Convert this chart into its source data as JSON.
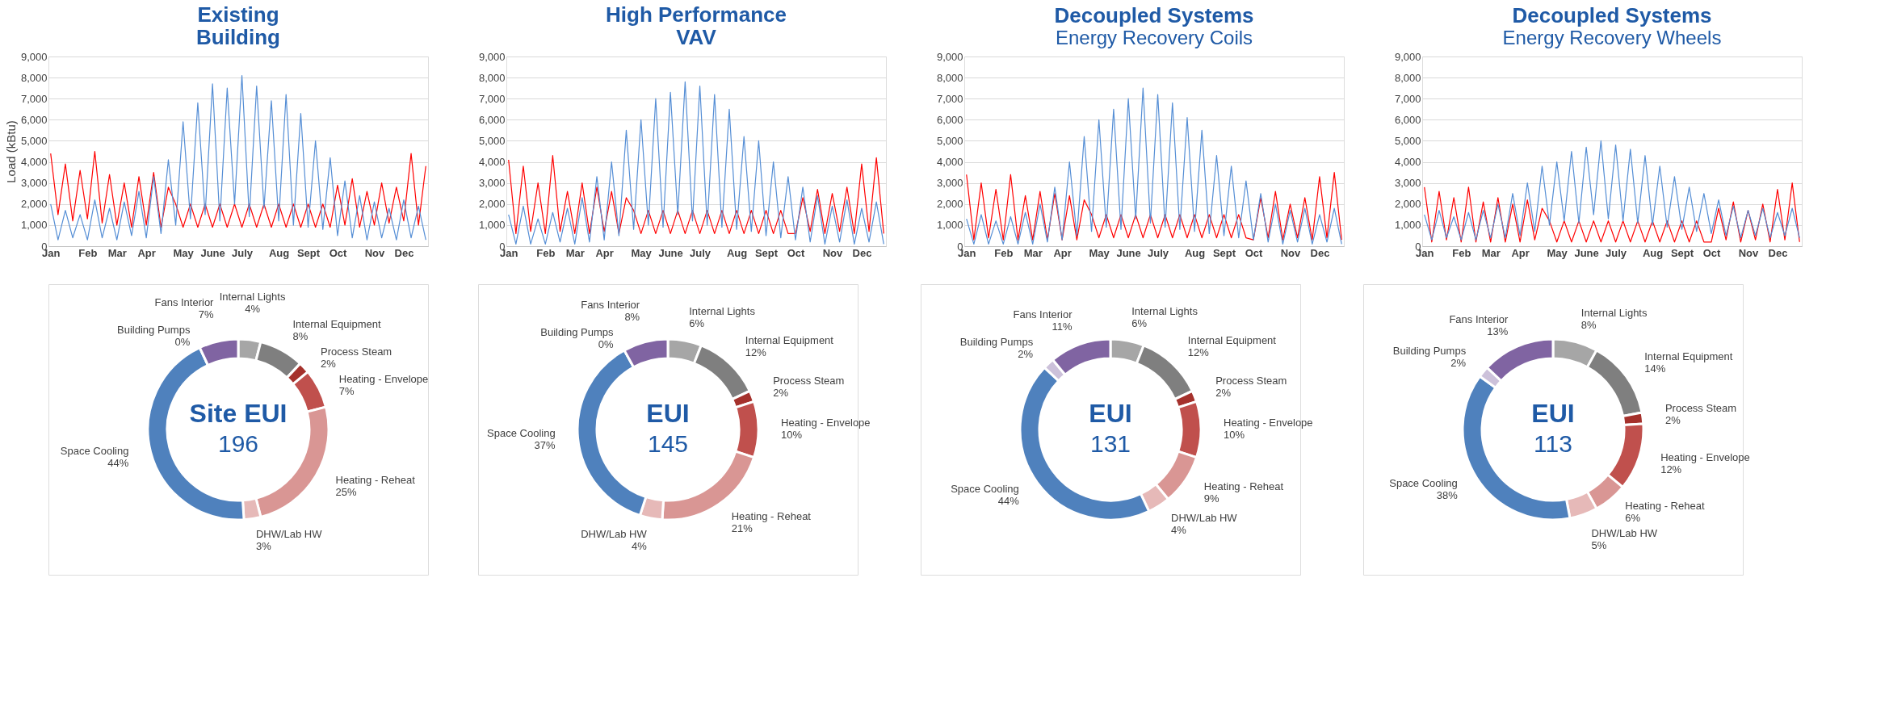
{
  "chart_data": [
    {
      "type": "line",
      "title": "Existing\nBuilding",
      "ylabel": "Load (kBtu)",
      "grid": "y",
      "marker": "none",
      "line_style": "solid",
      "categories": [
        "Jan",
        null,
        null,
        null,
        null,
        "Feb",
        null,
        null,
        null,
        "Mar",
        null,
        null,
        null,
        "Apr",
        null,
        null,
        null,
        null,
        "May",
        null,
        null,
        null,
        "June",
        null,
        null,
        null,
        "July",
        null,
        null,
        null,
        null,
        "Aug",
        null,
        null,
        null,
        "Sept",
        null,
        null,
        null,
        "Oct",
        null,
        null,
        null,
        null,
        "Nov",
        null,
        null,
        null,
        "Dec",
        null,
        null,
        null
      ],
      "ylim": [
        0,
        9000
      ],
      "yticks": [
        0,
        {
          "value": 1000,
          "label": "1,000"
        },
        {
          "value": 2000,
          "label": "2,000"
        },
        {
          "value": 3000,
          "label": "3,000"
        },
        {
          "value": 4000,
          "label": "4,000"
        },
        {
          "value": 5000,
          "label": "5,000"
        },
        {
          "value": 6000,
          "label": "6,000"
        },
        {
          "value": 7000,
          "label": "7,000"
        },
        {
          "value": 8000,
          "label": "8,000"
        },
        {
          "value": 9000,
          "label": "9,000"
        }
      ],
      "series": [
        {
          "color": "#ff0000",
          "values": [
            4400,
            1500,
            3900,
            1200,
            3600,
            1300,
            4500,
            1100,
            3400,
            1000,
            3000,
            900,
            3300,
            1000,
            3500,
            900,
            2800,
            2000,
            900,
            2000,
            900,
            2000,
            900,
            2000,
            900,
            2000,
            900,
            2000,
            900,
            2000,
            900,
            2000,
            900,
            2000,
            900,
            2000,
            900,
            2000,
            900,
            2900,
            1000,
            3200,
            900,
            2600,
            1000,
            3000,
            1100,
            2800,
            1200,
            4400,
            1000,
            3800
          ]
        },
        {
          "color": "#558ed5",
          "values": [
            2000,
            300,
            1700,
            400,
            1500,
            300,
            2200,
            400,
            1800,
            300,
            2100,
            500,
            2600,
            400,
            3300,
            600,
            4100,
            1000,
            5900,
            1300,
            6800,
            1500,
            7700,
            1200,
            7500,
            2000,
            8100,
            1400,
            7600,
            1800,
            6900,
            1200,
            7200,
            1000,
            6300,
            900,
            5000,
            800,
            4200,
            500,
            3100,
            400,
            2400,
            300,
            2100,
            400,
            1800,
            300,
            2200,
            400,
            1900,
            300
          ]
        }
      ]
    },
    {
      "type": "line",
      "title": "High Performance\nVAV",
      "grid": "y",
      "marker": "none",
      "line_style": "solid",
      "categories": [
        "Jan",
        null,
        null,
        null,
        null,
        "Feb",
        null,
        null,
        null,
        "Mar",
        null,
        null,
        null,
        "Apr",
        null,
        null,
        null,
        null,
        "May",
        null,
        null,
        null,
        "June",
        null,
        null,
        null,
        "July",
        null,
        null,
        null,
        null,
        "Aug",
        null,
        null,
        null,
        "Sept",
        null,
        null,
        null,
        "Oct",
        null,
        null,
        null,
        null,
        "Nov",
        null,
        null,
        null,
        "Dec",
        null,
        null,
        null
      ],
      "ylim": [
        0,
        9000
      ],
      "yticks": [
        0,
        {
          "value": 1000,
          "label": "1,000"
        },
        {
          "value": 2000,
          "label": "2,000"
        },
        {
          "value": 3000,
          "label": "3,000"
        },
        {
          "value": 4000,
          "label": "4,000"
        },
        {
          "value": 5000,
          "label": "5,000"
        },
        {
          "value": 6000,
          "label": "6,000"
        },
        {
          "value": 7000,
          "label": "7,000"
        },
        {
          "value": 8000,
          "label": "8,000"
        },
        {
          "value": 9000,
          "label": "9,000"
        }
      ],
      "series": [
        {
          "color": "#ff0000",
          "values": [
            4100,
            600,
            3800,
            700,
            3000,
            600,
            4300,
            700,
            2600,
            600,
            3000,
            600,
            2800,
            700,
            2600,
            600,
            2300,
            1700,
            600,
            1700,
            600,
            1700,
            600,
            1700,
            600,
            1700,
            600,
            1700,
            600,
            1700,
            600,
            1700,
            600,
            1700,
            600,
            1700,
            600,
            1700,
            600,
            600,
            2300,
            700,
            2700,
            600,
            2500,
            700,
            2800,
            600,
            3900,
            700,
            4200,
            600
          ]
        },
        {
          "color": "#558ed5",
          "values": [
            1500,
            100,
            1900,
            100,
            1300,
            100,
            1600,
            200,
            1800,
            100,
            2300,
            200,
            3300,
            300,
            4000,
            500,
            5500,
            800,
            6000,
            1000,
            7000,
            900,
            7300,
            1500,
            7800,
            1200,
            7600,
            1000,
            7200,
            900,
            6500,
            800,
            5200,
            700,
            5000,
            500,
            4000,
            400,
            3300,
            300,
            2800,
            200,
            2400,
            100,
            1900,
            200,
            2200,
            100,
            1800,
            200,
            2100,
            100
          ]
        }
      ]
    },
    {
      "type": "line",
      "title": "Decoupled Systems",
      "subtitle": "Energy Recovery Coils",
      "grid": "y",
      "marker": "none",
      "line_style": "solid",
      "categories": [
        "Jan",
        null,
        null,
        null,
        null,
        "Feb",
        null,
        null,
        null,
        "Mar",
        null,
        null,
        null,
        "Apr",
        null,
        null,
        null,
        null,
        "May",
        null,
        null,
        null,
        "June",
        null,
        null,
        null,
        "July",
        null,
        null,
        null,
        null,
        "Aug",
        null,
        null,
        null,
        "Sept",
        null,
        null,
        null,
        "Oct",
        null,
        null,
        null,
        null,
        "Nov",
        null,
        null,
        null,
        "Dec",
        null,
        null,
        null
      ],
      "ylim": [
        0,
        9000
      ],
      "yticks": [
        0,
        {
          "value": 1000,
          "label": "1,000"
        },
        {
          "value": 2000,
          "label": "2,000"
        },
        {
          "value": 3000,
          "label": "3,000"
        },
        {
          "value": 4000,
          "label": "4,000"
        },
        {
          "value": 5000,
          "label": "5,000"
        },
        {
          "value": 6000,
          "label": "6,000"
        },
        {
          "value": 7000,
          "label": "7,000"
        },
        {
          "value": 8000,
          "label": "8,000"
        },
        {
          "value": 9000,
          "label": "9,000"
        }
      ],
      "series": [
        {
          "color": "#ff0000",
          "values": [
            3400,
            300,
            3000,
            400,
            2700,
            300,
            3400,
            300,
            2400,
            300,
            2600,
            300,
            2500,
            300,
            2400,
            300,
            2200,
            1500,
            400,
            1500,
            400,
            1500,
            400,
            1500,
            400,
            1500,
            400,
            1500,
            400,
            1500,
            400,
            1500,
            400,
            1500,
            400,
            1500,
            400,
            1500,
            400,
            300,
            2300,
            400,
            2600,
            300,
            2000,
            400,
            2300,
            300,
            3300,
            400,
            3500,
            300
          ]
        },
        {
          "color": "#558ed5",
          "values": [
            1300,
            100,
            1500,
            100,
            1200,
            100,
            1400,
            100,
            1600,
            100,
            2000,
            200,
            2800,
            300,
            4000,
            500,
            5200,
            700,
            6000,
            900,
            6500,
            800,
            7000,
            1300,
            7500,
            1100,
            7200,
            900,
            6800,
            800,
            6100,
            700,
            5500,
            600,
            4300,
            500,
            3800,
            400,
            3100,
            300,
            2500,
            200,
            2000,
            100,
            1700,
            200,
            1800,
            100,
            1500,
            200,
            1800,
            100
          ]
        }
      ]
    },
    {
      "type": "line",
      "title": "Decoupled Systems",
      "subtitle": "Energy Recovery Wheels",
      "grid": "y",
      "marker": "none",
      "line_style": "solid",
      "categories": [
        "Jan",
        null,
        null,
        null,
        null,
        "Feb",
        null,
        null,
        null,
        "Mar",
        null,
        null,
        null,
        "Apr",
        null,
        null,
        null,
        null,
        "May",
        null,
        null,
        null,
        "June",
        null,
        null,
        null,
        "July",
        null,
        null,
        null,
        null,
        "Aug",
        null,
        null,
        null,
        "Sept",
        null,
        null,
        null,
        "Oct",
        null,
        null,
        null,
        null,
        "Nov",
        null,
        null,
        null,
        "Dec",
        null,
        null,
        null
      ],
      "ylim": [
        0,
        9000
      ],
      "yticks": [
        0,
        {
          "value": 1000,
          "label": "1,000"
        },
        {
          "value": 2000,
          "label": "2,000"
        },
        {
          "value": 3000,
          "label": "3,000"
        },
        {
          "value": 4000,
          "label": "4,000"
        },
        {
          "value": 5000,
          "label": "5,000"
        },
        {
          "value": 6000,
          "label": "6,000"
        },
        {
          "value": 7000,
          "label": "7,000"
        },
        {
          "value": 8000,
          "label": "8,000"
        },
        {
          "value": 9000,
          "label": "9,000"
        }
      ],
      "series": [
        {
          "color": "#ff0000",
          "values": [
            2800,
            200,
            2600,
            300,
            2300,
            200,
            2800,
            200,
            2100,
            200,
            2300,
            200,
            2000,
            200,
            2200,
            300,
            1800,
            1200,
            200,
            1200,
            200,
            1200,
            200,
            1200,
            200,
            1200,
            200,
            1200,
            200,
            1200,
            200,
            1200,
            200,
            1200,
            200,
            1200,
            200,
            1200,
            200,
            200,
            1800,
            300,
            2100,
            200,
            1700,
            300,
            2000,
            200,
            2700,
            300,
            3000,
            200
          ]
        },
        {
          "color": "#558ed5",
          "values": [
            1500,
            300,
            1700,
            400,
            1400,
            300,
            1600,
            300,
            1700,
            400,
            2000,
            400,
            2500,
            500,
            3000,
            700,
            3800,
            1000,
            4000,
            1200,
            4500,
            1100,
            4700,
            1500,
            5000,
            1300,
            4800,
            1200,
            4600,
            1100,
            4300,
            1000,
            3800,
            900,
            3300,
            800,
            2800,
            700,
            2500,
            600,
            2200,
            500,
            1900,
            400,
            1700,
            500,
            1800,
            400,
            1600,
            500,
            1800,
            400
          ]
        }
      ]
    },
    {
      "type": "donut",
      "annotations": [
        "Site EUI",
        "196"
      ],
      "categories": [
        "Internal Lights",
        "Internal Equipment",
        "Process Steam",
        "Heating - Envelope",
        "Heating - Reheat",
        "DHW/Lab HW",
        "Space Cooling",
        "Building Pumps",
        "Fans Interior"
      ],
      "values": [
        4,
        8,
        2,
        7,
        25,
        3,
        44,
        0,
        7
      ],
      "value_labels": [
        "4%",
        "8%",
        "2%",
        "7%",
        "25%",
        "3%",
        "44%",
        "0%",
        "7%"
      ],
      "colors": [
        "#a6a6a6",
        "#7f7f7f",
        "#a5312c",
        "#c0504d",
        "#d99694",
        "#e6b9b8",
        "#4f81bd",
        "#ccc1da",
        "#8064a2"
      ]
    },
    {
      "type": "donut",
      "annotations": [
        "EUI",
        "145"
      ],
      "categories": [
        "Internal Lights",
        "Internal Equipment",
        "Process Steam",
        "Heating - Envelope",
        "Heating - Reheat",
        "DHW/Lab HW",
        "Space Cooling",
        "Building Pumps",
        "Fans Interior"
      ],
      "values": [
        6,
        12,
        2,
        10,
        21,
        4,
        37,
        0,
        8
      ],
      "value_labels": [
        "6%",
        "12%",
        "2%",
        "10%",
        "21%",
        "4%",
        "37%",
        "0%",
        "8%"
      ],
      "colors": [
        "#a6a6a6",
        "#7f7f7f",
        "#a5312c",
        "#c0504d",
        "#d99694",
        "#e6b9b8",
        "#4f81bd",
        "#ccc1da",
        "#8064a2"
      ]
    },
    {
      "type": "donut",
      "annotations": [
        "EUI",
        "131"
      ],
      "categories": [
        "Internal Lights",
        "Internal Equipment",
        "Process Steam",
        "Heating - Envelope",
        "Heating - Reheat",
        "DHW/Lab HW",
        "Space Cooling",
        "Building Pumps",
        "Fans Interior"
      ],
      "values": [
        6,
        12,
        2,
        10,
        9,
        4,
        44,
        2,
        11
      ],
      "value_labels": [
        "6%",
        "12%",
        "2%",
        "10%",
        "9%",
        "4%",
        "44%",
        "2%",
        "11%"
      ],
      "colors": [
        "#a6a6a6",
        "#7f7f7f",
        "#a5312c",
        "#c0504d",
        "#d99694",
        "#e6b9b8",
        "#4f81bd",
        "#ccc1da",
        "#8064a2"
      ]
    },
    {
      "type": "donut",
      "annotations": [
        "EUI",
        "113"
      ],
      "categories": [
        "Internal Lights",
        "Internal Equipment",
        "Process Steam",
        "Heating - Envelope",
        "Heating - Reheat",
        "DHW/Lab HW",
        "Space Cooling",
        "Building Pumps",
        "Fans Interior"
      ],
      "values": [
        8,
        14,
        2,
        12,
        6,
        5,
        38,
        2,
        13
      ],
      "value_labels": [
        "8%",
        "14%",
        "2%",
        "12%",
        "6%",
        "5%",
        "38%",
        "2%",
        "13%"
      ],
      "colors": [
        "#a6a6a6",
        "#7f7f7f",
        "#a5312c",
        "#c0504d",
        "#d99694",
        "#e6b9b8",
        "#4f81bd",
        "#ccc1da",
        "#8064a2"
      ]
    }
  ]
}
